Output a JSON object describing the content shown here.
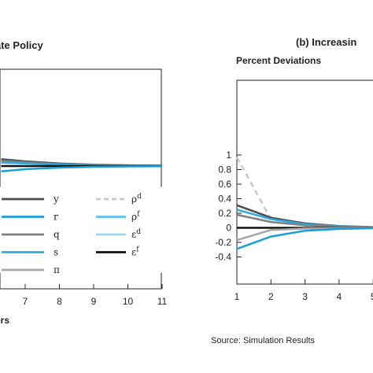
{
  "chart_data": [
    {
      "type": "line",
      "title": "ate Policy",
      "xlabel": "ers",
      "x_ticks": [
        "7",
        "8",
        "9",
        "10",
        "11"
      ],
      "xlim": [
        6.3,
        11
      ],
      "ylim": [
        -0.4,
        1
      ],
      "legend_placement": "bottom-left, inside",
      "legend": [
        {
          "key": "y",
          "label": "y",
          "sup": "",
          "color": "#4d4d4d",
          "dash": false
        },
        {
          "key": "r",
          "label": "r",
          "sup": "",
          "color": "#1a9ed9",
          "dash": false
        },
        {
          "key": "q",
          "label": "q",
          "sup": "",
          "color": "#7f7f7f",
          "dash": false
        },
        {
          "key": "s",
          "label": "s",
          "sup": "",
          "color": "#29abe2",
          "dash": false
        },
        {
          "key": "pi",
          "label": "π",
          "sup": "",
          "color": "#a6a6a6",
          "dash": false
        },
        {
          "key": "rhod",
          "label": "ρ",
          "sup": "d",
          "color": "#c8c8c8",
          "dash": true
        },
        {
          "key": "rhof",
          "label": "ρ",
          "sup": "f",
          "color": "#5bc2ec",
          "dash": false
        },
        {
          "key": "epsd",
          "label": "ε",
          "sup": "d",
          "color": "#9dd6ef",
          "dash": false
        },
        {
          "key": "epsf",
          "label": "ε",
          "sup": "f",
          "color": "#111111",
          "dash": false
        }
      ],
      "series": [
        {
          "key": "y",
          "color": "#4d4d4d",
          "x": [
            6.3,
            7,
            8,
            9,
            10,
            11
          ],
          "values": [
            0.11,
            0.075,
            0.04,
            0.022,
            0.012,
            0.006
          ]
        },
        {
          "key": "q",
          "color": "#7f7f7f",
          "x": [
            6.3,
            7,
            8,
            9,
            10,
            11
          ],
          "values": [
            0.085,
            0.06,
            0.032,
            0.018,
            0.01,
            0.005
          ]
        },
        {
          "key": "s",
          "color": "#29abe2",
          "x": [
            6.3,
            7,
            8,
            9,
            10,
            11
          ],
          "values": [
            0.055,
            0.04,
            0.022,
            0.012,
            0.007,
            0.004
          ]
        },
        {
          "key": "epsf",
          "color": "#111111",
          "x": [
            6.3,
            11
          ],
          "values": [
            0,
            0
          ]
        },
        {
          "key": "r",
          "color": "#1a9ed9",
          "x": [
            6.3,
            7,
            8,
            9,
            10,
            11
          ],
          "values": [
            -0.085,
            -0.05,
            -0.025,
            -0.012,
            -0.006,
            -0.003
          ]
        }
      ]
    },
    {
      "type": "line",
      "title": "(b) Increasin",
      "ylabel": "Percent Deviations",
      "x_ticks": [
        "1",
        "2",
        "3",
        "4",
        "5"
      ],
      "y_ticks": [
        "1",
        "0.8",
        "0.6",
        "0.4",
        "0.2",
        "0",
        "-0.2",
        "-0.4"
      ],
      "xlim": [
        1,
        5
      ],
      "ylim": [
        -0.4,
        1
      ],
      "series": [
        {
          "key": "rhod",
          "color": "#c8c8c8",
          "dash": true,
          "x": [
            1,
            2,
            3,
            4,
            5
          ],
          "values": [
            0.97,
            0.12,
            0.03,
            0.008,
            0.002
          ]
        },
        {
          "key": "y",
          "color": "#4d4d4d",
          "x": [
            1,
            2,
            3,
            4,
            5
          ],
          "values": [
            0.31,
            0.14,
            0.06,
            0.025,
            0.01
          ]
        },
        {
          "key": "s",
          "color": "#29abe2",
          "x": [
            1,
            2,
            3,
            4,
            5
          ],
          "values": [
            0.25,
            0.12,
            0.05,
            0.02,
            0.008
          ]
        },
        {
          "key": "q",
          "color": "#7f7f7f",
          "x": [
            1,
            2,
            3,
            4,
            5
          ],
          "values": [
            0.18,
            0.08,
            0.035,
            0.015,
            0.006
          ]
        },
        {
          "key": "epsf",
          "color": "#111111",
          "x": [
            1,
            5
          ],
          "values": [
            0,
            0
          ]
        },
        {
          "key": "pi",
          "color": "#a6a6a6",
          "x": [
            1,
            2,
            3,
            4,
            5
          ],
          "values": [
            -0.17,
            -0.03,
            -0.01,
            -0.004,
            -0.001
          ]
        },
        {
          "key": "r",
          "color": "#1a9ed9",
          "x": [
            1,
            2,
            3,
            4,
            5
          ],
          "values": [
            -0.29,
            -0.12,
            -0.04,
            -0.015,
            -0.005
          ]
        }
      ]
    }
  ],
  "source": "Source: Simulation Results"
}
